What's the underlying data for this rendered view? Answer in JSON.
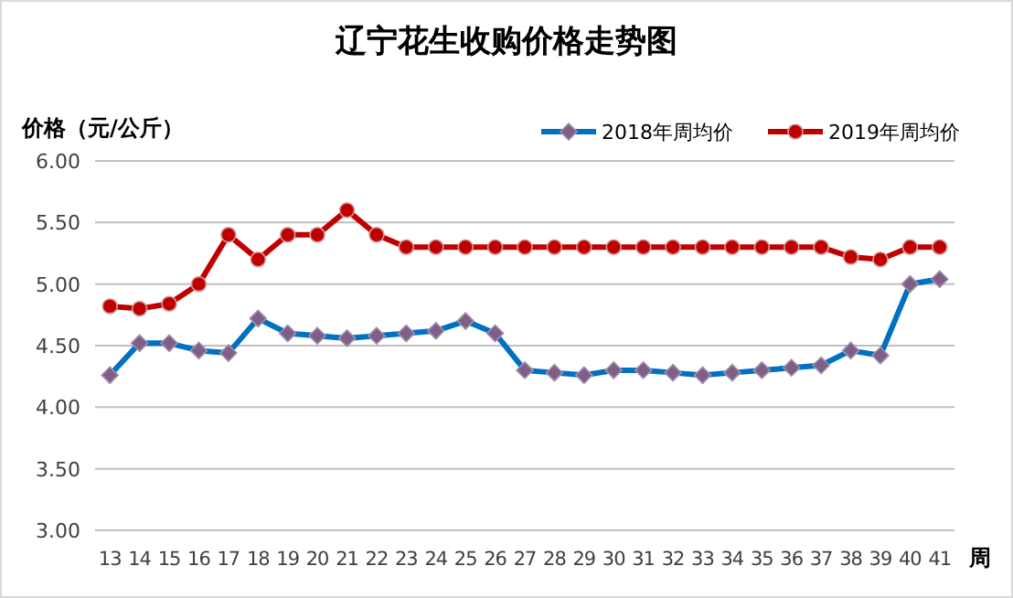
{
  "chart_data": {
    "type": "line",
    "title": "辽宁花生收购价格走势图",
    "ylabel": "价格（元/公斤）",
    "xlabel": "周",
    "categories": [
      "13",
      "14",
      "15",
      "16",
      "17",
      "18",
      "19",
      "20",
      "21",
      "22",
      "23",
      "24",
      "25",
      "26",
      "27",
      "28",
      "29",
      "30",
      "31",
      "32",
      "33",
      "34",
      "35",
      "36",
      "37",
      "38",
      "39",
      "40",
      "41"
    ],
    "series": [
      {
        "name": "2018年周均价",
        "color": "#0070c0",
        "marker": "diamond",
        "values": [
          4.26,
          4.52,
          4.52,
          4.46,
          4.44,
          4.72,
          4.6,
          4.58,
          4.56,
          4.58,
          4.6,
          4.62,
          4.7,
          4.6,
          4.3,
          4.28,
          4.26,
          4.3,
          4.3,
          4.28,
          4.26,
          4.28,
          4.3,
          4.32,
          4.34,
          4.46,
          4.42,
          5.0,
          5.04
        ]
      },
      {
        "name": "2019年周均价",
        "color": "#c00000",
        "marker": "circle",
        "values": [
          4.82,
          4.8,
          4.84,
          5.0,
          5.4,
          5.2,
          5.4,
          5.4,
          5.6,
          5.4,
          5.3,
          5.3,
          5.3,
          5.3,
          5.3,
          5.3,
          5.3,
          5.3,
          5.3,
          5.3,
          5.3,
          5.3,
          5.3,
          5.3,
          5.3,
          5.22,
          5.2,
          5.3,
          5.3
        ]
      }
    ],
    "ylim": [
      3,
      6
    ],
    "yticks": [
      {
        "value": 3,
        "label": "3.00"
      },
      {
        "value": 3.5,
        "label": "3.50"
      },
      {
        "value": 4,
        "label": "4.00"
      },
      {
        "value": 4.5,
        "label": "4.50"
      },
      {
        "value": 5,
        "label": "5.00"
      },
      {
        "value": 5.5,
        "label": "5.50"
      },
      {
        "value": 6,
        "label": "6.00"
      }
    ],
    "grid": "y",
    "legend": "top right",
    "line_style": "solid"
  }
}
